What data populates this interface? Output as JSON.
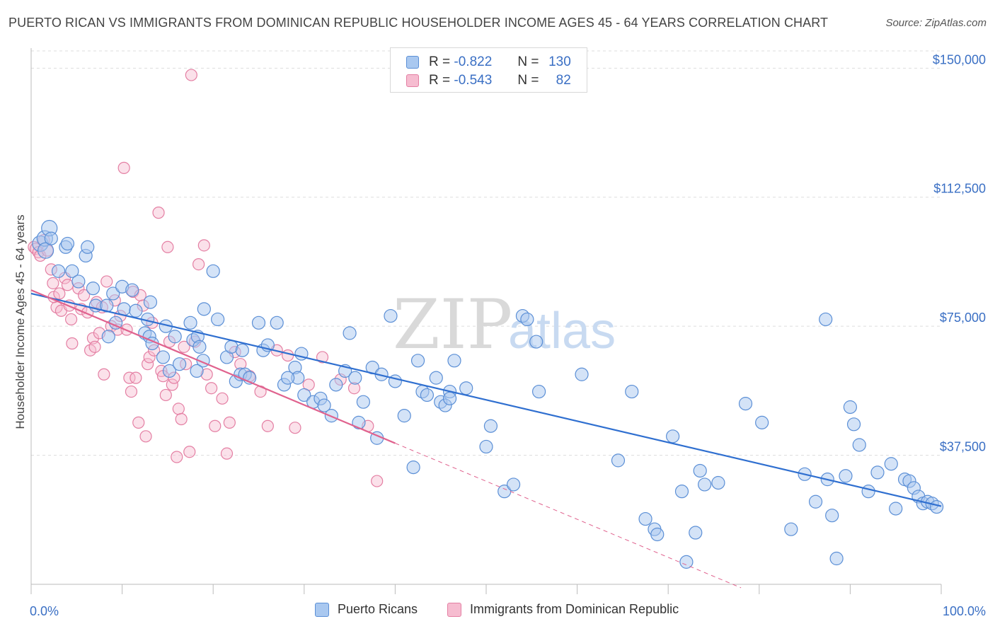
{
  "title": "PUERTO RICAN VS IMMIGRANTS FROM DOMINICAN REPUBLIC HOUSEHOLDER INCOME AGES 45 - 64 YEARS CORRELATION CHART",
  "source": "Source: ZipAtlas.com",
  "watermark": {
    "zip": "ZIP",
    "atlas": "atlas"
  },
  "legend": {
    "r_label": "R =",
    "n_label": "N =",
    "series": [
      {
        "r": "-0.822",
        "n": "130"
      },
      {
        "r": "-0.543",
        "n": "82"
      }
    ]
  },
  "colors": {
    "blue_fill": "#a9c8f0",
    "blue_stroke": "#5b8fd6",
    "blue_line": "#2f6fd0",
    "pink_fill": "#f6bcd0",
    "pink_stroke": "#e47fa3",
    "pink_line": "#e0628e",
    "label": "#3a6fc4",
    "grid": "#dddddd"
  },
  "chart_data": {
    "type": "scatter",
    "title": "PUERTO RICAN VS IMMIGRANTS FROM DOMINICAN REPUBLIC HOUSEHOLDER INCOME AGES 45 - 64 YEARS CORRELATION CHART",
    "xlabel": "",
    "ylabel": "Householder Income Ages 45 - 64 years",
    "xlim": [
      0,
      100
    ],
    "ylim": [
      0,
      155000
    ],
    "x_tick_labels": [
      "0.0%",
      "100.0%"
    ],
    "y_ticks": [
      37500,
      75000,
      112500,
      150000
    ],
    "y_tick_labels": [
      "$37,500",
      "$75,000",
      "$112,500",
      "$150,000"
    ],
    "grid": "horizontal dashed",
    "legend_position": "top-center and bottom",
    "series": [
      {
        "name": "Puerto Ricans",
        "trend": {
          "x": [
            0,
            100
          ],
          "y": [
            84500,
            22700
          ]
        },
        "points": [
          [
            1,
            99000
          ],
          [
            1.5,
            100500
          ],
          [
            1.6,
            97000
          ],
          [
            2,
            103500
          ],
          [
            2.2,
            100500
          ],
          [
            3,
            91000
          ],
          [
            3.8,
            98000
          ],
          [
            4,
            99000
          ],
          [
            4.5,
            91000
          ],
          [
            5.2,
            88000
          ],
          [
            6,
            95500
          ],
          [
            6.2,
            98000
          ],
          [
            6.8,
            86000
          ],
          [
            7.1,
            81000
          ],
          [
            8.3,
            81000
          ],
          [
            8.5,
            72000
          ],
          [
            9.3,
            76000
          ],
          [
            9,
            84500
          ],
          [
            10,
            86500
          ],
          [
            10.2,
            80000
          ],
          [
            11.1,
            85500
          ],
          [
            11.5,
            79500
          ],
          [
            12.5,
            73000
          ],
          [
            13,
            72000
          ],
          [
            13.3,
            70000
          ],
          [
            12.8,
            77000
          ],
          [
            13.1,
            82000
          ],
          [
            14.5,
            66000
          ],
          [
            14.8,
            75000
          ],
          [
            15.2,
            62000
          ],
          [
            15.8,
            72000
          ],
          [
            16.3,
            64000
          ],
          [
            17.5,
            76000
          ],
          [
            17.8,
            71000
          ],
          [
            18.3,
            72000
          ],
          [
            18.5,
            69000
          ],
          [
            18.9,
            65000
          ],
          [
            18.2,
            62000
          ],
          [
            19,
            80000
          ],
          [
            20,
            91000
          ],
          [
            20.5,
            77000
          ],
          [
            21.5,
            66000
          ],
          [
            22,
            69000
          ],
          [
            22.5,
            59000
          ],
          [
            23,
            61000
          ],
          [
            23.5,
            61000
          ],
          [
            23.2,
            68000
          ],
          [
            24,
            60000
          ],
          [
            25,
            76000
          ],
          [
            25.5,
            68000
          ],
          [
            26,
            69500
          ],
          [
            27,
            76000
          ],
          [
            27.8,
            58000
          ],
          [
            29,
            63000
          ],
          [
            29.3,
            60000
          ],
          [
            29.7,
            67000
          ],
          [
            28.2,
            60000
          ],
          [
            30,
            55000
          ],
          [
            31,
            53000
          ],
          [
            31.8,
            54000
          ],
          [
            32.2,
            52000
          ],
          [
            33,
            49000
          ],
          [
            33.5,
            58000
          ],
          [
            34.5,
            62000
          ],
          [
            35,
            73000
          ],
          [
            35.6,
            60000
          ],
          [
            36,
            47000
          ],
          [
            36.5,
            53000
          ],
          [
            37.5,
            63000
          ],
          [
            38,
            42500
          ],
          [
            38.5,
            61000
          ],
          [
            39.5,
            78000
          ],
          [
            40,
            59000
          ],
          [
            41,
            49000
          ],
          [
            42,
            34000
          ],
          [
            43,
            56000
          ],
          [
            43.5,
            55000
          ],
          [
            42.5,
            65000
          ],
          [
            44.5,
            60000
          ],
          [
            45,
            53000
          ],
          [
            45.5,
            52000
          ],
          [
            46,
            56000
          ],
          [
            46.5,
            65000
          ],
          [
            46,
            54000
          ],
          [
            47.8,
            57000
          ],
          [
            50,
            40000
          ],
          [
            50.5,
            46000
          ],
          [
            52,
            27000
          ],
          [
            53,
            29000
          ],
          [
            54,
            78000
          ],
          [
            54.5,
            77000
          ],
          [
            55.5,
            70500
          ],
          [
            55.8,
            56000
          ],
          [
            60.5,
            61000
          ],
          [
            64.5,
            36000
          ],
          [
            66,
            56000
          ],
          [
            67.5,
            19000
          ],
          [
            68.5,
            16000
          ],
          [
            68.8,
            14500
          ],
          [
            70.5,
            43000
          ],
          [
            71.5,
            27000
          ],
          [
            72,
            6500
          ],
          [
            73,
            15000
          ],
          [
            73.5,
            33000
          ],
          [
            74,
            29000
          ],
          [
            75.5,
            29500
          ],
          [
            78.5,
            52500
          ],
          [
            80.3,
            47000
          ],
          [
            83.5,
            16000
          ],
          [
            85,
            32000
          ],
          [
            86.2,
            24000
          ],
          [
            87.3,
            77000
          ],
          [
            87.5,
            30500
          ],
          [
            88,
            20000
          ],
          [
            88.5,
            7500
          ],
          [
            89.5,
            31500
          ],
          [
            90,
            51500
          ],
          [
            90.4,
            46500
          ],
          [
            91,
            40500
          ],
          [
            92,
            27000
          ],
          [
            93,
            32500
          ],
          [
            94.5,
            35000
          ],
          [
            95,
            22000
          ],
          [
            96,
            30500
          ],
          [
            96.5,
            30000
          ],
          [
            97,
            28000
          ],
          [
            97.5,
            25500
          ],
          [
            98,
            23500
          ],
          [
            98.5,
            24000
          ],
          [
            99,
            23500
          ],
          [
            99.5,
            22500
          ]
        ]
      },
      {
        "name": "Immigrants from Dominican Republic",
        "trend": {
          "x": [
            0,
            40
          ],
          "y": [
            85500,
            41000
          ]
        },
        "trend_extension": {
          "x": [
            40,
            78
          ],
          "y": [
            41000,
            -1000
          ]
        },
        "points": [
          [
            0.3,
            98000
          ],
          [
            0.5,
            97500
          ],
          [
            0.8,
            96500
          ],
          [
            1,
            95500
          ],
          [
            1.4,
            100000
          ],
          [
            1.8,
            97000
          ],
          [
            2.2,
            91500
          ],
          [
            2.4,
            87500
          ],
          [
            2.8,
            80500
          ],
          [
            2.5,
            83500
          ],
          [
            3.1,
            84500
          ],
          [
            3.3,
            79500
          ],
          [
            3.7,
            89000
          ],
          [
            4,
            87000
          ],
          [
            4.2,
            81000
          ],
          [
            4.4,
            77000
          ],
          [
            4.5,
            70000
          ],
          [
            5.2,
            86000
          ],
          [
            5.5,
            80000
          ],
          [
            5.8,
            84000
          ],
          [
            6.2,
            79000
          ],
          [
            6.5,
            68000
          ],
          [
            6.8,
            71500
          ],
          [
            7,
            69000
          ],
          [
            7.2,
            82000
          ],
          [
            7.5,
            73000
          ],
          [
            7.8,
            80500
          ],
          [
            8,
            61000
          ],
          [
            8.3,
            88000
          ],
          [
            8.8,
            75000
          ],
          [
            9.2,
            82500
          ],
          [
            9.5,
            74000
          ],
          [
            9.8,
            78000
          ],
          [
            10.2,
            121000
          ],
          [
            10.5,
            74000
          ],
          [
            10.8,
            60000
          ],
          [
            11,
            56000
          ],
          [
            11.2,
            85000
          ],
          [
            11.5,
            60000
          ],
          [
            11.8,
            47000
          ],
          [
            12,
            84000
          ],
          [
            12.3,
            81000
          ],
          [
            12.6,
            43000
          ],
          [
            12.8,
            64000
          ],
          [
            13,
            66000
          ],
          [
            13.3,
            76000
          ],
          [
            13.5,
            68000
          ],
          [
            14,
            108000
          ],
          [
            14.3,
            62000
          ],
          [
            14.5,
            60500
          ],
          [
            14.8,
            55000
          ],
          [
            15,
            98000
          ],
          [
            15.2,
            70500
          ],
          [
            15.5,
            58000
          ],
          [
            15.7,
            60000
          ],
          [
            16,
            37000
          ],
          [
            16.2,
            51000
          ],
          [
            16.5,
            48000
          ],
          [
            16.8,
            69000
          ],
          [
            17,
            64000
          ],
          [
            17.4,
            38500
          ],
          [
            17.6,
            148000
          ],
          [
            18,
            70500
          ],
          [
            18.4,
            93000
          ],
          [
            19,
            98500
          ],
          [
            19.3,
            61000
          ],
          [
            19.8,
            57000
          ],
          [
            20.2,
            46000
          ],
          [
            21,
            54000
          ],
          [
            21.5,
            38000
          ],
          [
            21.8,
            47000
          ],
          [
            22.4,
            67500
          ],
          [
            23,
            64000
          ],
          [
            24,
            60500
          ],
          [
            25.2,
            56000
          ],
          [
            26,
            46000
          ],
          [
            27,
            68000
          ],
          [
            28.2,
            66500
          ],
          [
            29,
            45500
          ],
          [
            30.5,
            58000
          ],
          [
            32,
            66000
          ],
          [
            34,
            59500
          ],
          [
            35.5,
            57000
          ],
          [
            37,
            46000
          ],
          [
            38,
            30000
          ]
        ]
      }
    ]
  },
  "bottom_legend": [
    "Puerto Ricans",
    "Immigrants from Dominican Republic"
  ]
}
